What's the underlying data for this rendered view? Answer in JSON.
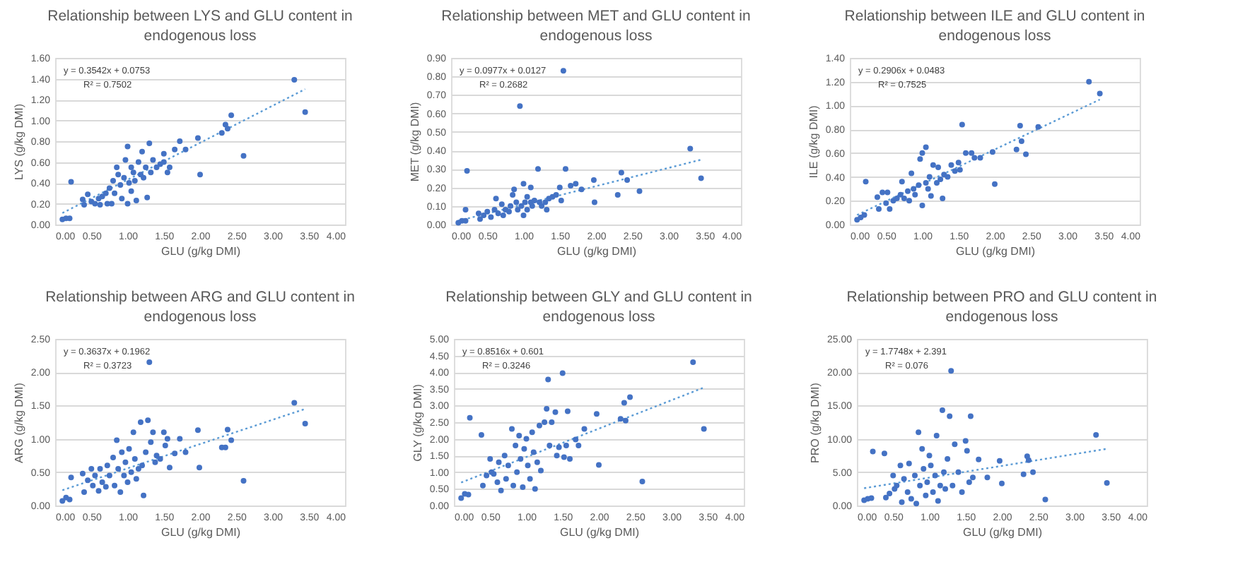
{
  "chart_data": [
    {
      "type": "scatter",
      "title": "Relationship between LYS and GLU content in endogenous loss",
      "xlabel": "GLU (g/kg DMI)",
      "ylabel": "LYS (g/kg DMI)",
      "annotations": [
        "y = 0.3542x + 0.0753",
        "R² = 0.7502"
      ],
      "grid": "y",
      "marker": "circle",
      "xlim": [
        0,
        4
      ],
      "xticks": [
        {
          "value": 0,
          "label": "0.00"
        },
        {
          "value": 0.5,
          "label": "0.50"
        },
        {
          "value": 1,
          "label": "1.00"
        },
        {
          "value": 1.5,
          "label": "1.50"
        },
        {
          "value": 2,
          "label": "2.00"
        },
        {
          "value": 2.5,
          "label": "2.50"
        },
        {
          "value": 3,
          "label": "3.00"
        },
        {
          "value": 3.5,
          "label": "3.50"
        },
        {
          "value": 4,
          "label": "4.00"
        }
      ],
      "ylim": [
        0,
        1.6
      ],
      "yticks": [
        {
          "value": 0,
          "label": "0.00"
        },
        {
          "value": 0.2,
          "label": "0.20"
        },
        {
          "value": 0.4,
          "label": "0.40"
        },
        {
          "value": 0.6,
          "label": "0.60"
        },
        {
          "value": 0.8,
          "label": "0.80"
        },
        {
          "value": 1,
          "label": "1.00"
        },
        {
          "value": 1.2,
          "label": "1.20"
        },
        {
          "value": 1.4,
          "label": "1.40"
        },
        {
          "value": 1.6,
          "label": "1.60"
        }
      ],
      "series": [
        {
          "type": "scatter",
          "color": "#4472c4",
          "x": [
            0.1,
            0.15,
            0.2,
            0.22,
            0.38,
            0.4,
            0.45,
            0.5,
            0.55,
            0.6,
            0.62,
            0.65,
            0.7,
            0.72,
            0.75,
            0.78,
            0.8,
            0.82,
            0.85,
            0.87,
            0.9,
            0.92,
            0.95,
            0.97,
            1.0,
            1.0,
            1.02,
            1.05,
            1.05,
            1.08,
            1.1,
            1.12,
            1.15,
            1.18,
            1.2,
            1.22,
            1.25,
            1.27,
            1.3,
            1.32,
            1.35,
            1.4,
            1.45,
            1.5,
            1.5,
            1.55,
            1.58,
            1.65,
            1.72,
            1.8,
            1.97,
            2.0,
            2.3,
            2.35,
            2.38,
            2.43,
            2.6,
            3.3,
            3.45
          ],
          "values": [
            0.05,
            0.06,
            0.06,
            0.41,
            0.24,
            0.19,
            0.29,
            0.22,
            0.2,
            0.25,
            0.19,
            0.27,
            0.3,
            0.2,
            0.35,
            0.2,
            0.42,
            0.3,
            0.55,
            0.48,
            0.38,
            0.25,
            0.45,
            0.62,
            0.2,
            0.75,
            0.4,
            0.55,
            0.32,
            0.5,
            0.42,
            0.23,
            0.6,
            0.48,
            0.7,
            0.45,
            0.55,
            0.26,
            0.78,
            0.5,
            0.62,
            0.55,
            0.58,
            0.6,
            0.68,
            0.5,
            0.55,
            0.72,
            0.8,
            0.72,
            0.83,
            0.48,
            0.88,
            0.96,
            0.92,
            1.05,
            0.66,
            1.39,
            1.08
          ]
        },
        {
          "type": "line",
          "color": "#5b9bd5",
          "line_style": "dotted",
          "marker": "none",
          "x": [
            0.1,
            3.45
          ],
          "values": [
            0.11,
            1.3
          ]
        }
      ]
    },
    {
      "type": "scatter",
      "title": "Relationship between MET and GLU content in endogenous loss",
      "xlabel": "GLU (g/kg DMI)",
      "ylabel": "MET (g/kg DMI)",
      "annotations": [
        "y = 0.0977x + 0.0127",
        "R² = 0.2682"
      ],
      "grid": "y",
      "marker": "circle",
      "xlim": [
        0,
        4
      ],
      "xticks": [
        {
          "value": 0,
          "label": "0.00"
        },
        {
          "value": 0.5,
          "label": "0.50"
        },
        {
          "value": 1,
          "label": "1.00"
        },
        {
          "value": 1.5,
          "label": "1.50"
        },
        {
          "value": 2,
          "label": "2.00"
        },
        {
          "value": 2.5,
          "label": "2.50"
        },
        {
          "value": 3,
          "label": "3.00"
        },
        {
          "value": 3.5,
          "label": "3.50"
        },
        {
          "value": 4,
          "label": "4.00"
        }
      ],
      "ylim": [
        0,
        0.9
      ],
      "yticks": [
        {
          "value": 0,
          "label": "0.00"
        },
        {
          "value": 0.1,
          "label": "0.10"
        },
        {
          "value": 0.2,
          "label": "0.20"
        },
        {
          "value": 0.3,
          "label": "0.30"
        },
        {
          "value": 0.4,
          "label": "0.40"
        },
        {
          "value": 0.5,
          "label": "0.50"
        },
        {
          "value": 0.6,
          "label": "0.60"
        },
        {
          "value": 0.7,
          "label": "0.70"
        },
        {
          "value": 0.8,
          "label": "0.80"
        },
        {
          "value": 0.9,
          "label": "0.90"
        }
      ],
      "series": [
        {
          "type": "scatter",
          "color": "#4472c4",
          "x": [
            0.1,
            0.15,
            0.2,
            0.2,
            0.22,
            0.38,
            0.4,
            0.45,
            0.5,
            0.55,
            0.6,
            0.62,
            0.65,
            0.7,
            0.72,
            0.75,
            0.8,
            0.82,
            0.85,
            0.87,
            0.9,
            0.92,
            0.95,
            0.97,
            1.0,
            1.0,
            1.02,
            1.05,
            1.05,
            1.1,
            1.1,
            1.12,
            1.15,
            1.2,
            1.22,
            1.25,
            1.3,
            1.32,
            1.35,
            1.4,
            1.45,
            1.5,
            1.52,
            1.55,
            1.58,
            1.65,
            1.72,
            1.8,
            1.97,
            1.98,
            2.3,
            2.35,
            2.43,
            2.6,
            3.3,
            3.45
          ],
          "values": [
            0.01,
            0.02,
            0.02,
            0.08,
            0.29,
            0.06,
            0.03,
            0.05,
            0.07,
            0.04,
            0.08,
            0.14,
            0.06,
            0.11,
            0.05,
            0.08,
            0.07,
            0.1,
            0.16,
            0.19,
            0.12,
            0.08,
            0.64,
            0.1,
            0.22,
            0.05,
            0.12,
            0.15,
            0.08,
            0.2,
            0.12,
            0.1,
            0.13,
            0.3,
            0.12,
            0.1,
            0.12,
            0.08,
            0.14,
            0.15,
            0.16,
            0.2,
            0.13,
            0.83,
            0.3,
            0.21,
            0.22,
            0.19,
            0.24,
            0.12,
            0.16,
            0.28,
            0.24,
            0.18,
            0.41,
            0.25
          ]
        },
        {
          "type": "line",
          "color": "#5b9bd5",
          "line_style": "dotted",
          "marker": "none",
          "x": [
            0.1,
            3.45
          ],
          "values": [
            0.02,
            0.35
          ]
        }
      ]
    },
    {
      "type": "scatter",
      "title": "Relationship between ILE and GLU content in endogenous loss",
      "xlabel": "GLU (g/kg DMI)",
      "ylabel": "ILE (g/kg DMI)",
      "annotations": [
        "y = 0.2906x + 0.0483",
        "R² = 0.7525"
      ],
      "grid": "y",
      "marker": "circle",
      "xlim": [
        0,
        4
      ],
      "xticks": [
        {
          "value": 0,
          "label": "0.00"
        },
        {
          "value": 0.5,
          "label": "0.50"
        },
        {
          "value": 1,
          "label": "1.00"
        },
        {
          "value": 1.5,
          "label": "1.50"
        },
        {
          "value": 2,
          "label": "2.00"
        },
        {
          "value": 2.5,
          "label": "2.50"
        },
        {
          "value": 3,
          "label": "3.00"
        },
        {
          "value": 3.5,
          "label": "3.50"
        },
        {
          "value": 4,
          "label": "4.00"
        }
      ],
      "ylim": [
        0,
        1.4
      ],
      "yticks": [
        {
          "value": 0,
          "label": "0.00"
        },
        {
          "value": 0.2,
          "label": "0.20"
        },
        {
          "value": 0.4,
          "label": "0.40"
        },
        {
          "value": 0.6,
          "label": "0.60"
        },
        {
          "value": 0.8,
          "label": "0.80"
        },
        {
          "value": 1,
          "label": "1.00"
        },
        {
          "value": 1.2,
          "label": "1.20"
        },
        {
          "value": 1.4,
          "label": "1.40"
        }
      ],
      "series": [
        {
          "type": "scatter",
          "color": "#4472c4",
          "x": [
            0.1,
            0.15,
            0.2,
            0.22,
            0.38,
            0.4,
            0.45,
            0.5,
            0.52,
            0.55,
            0.6,
            0.65,
            0.7,
            0.72,
            0.75,
            0.8,
            0.82,
            0.85,
            0.88,
            0.9,
            0.95,
            0.97,
            1.0,
            1.0,
            1.05,
            1.05,
            1.08,
            1.1,
            1.12,
            1.15,
            1.2,
            1.22,
            1.25,
            1.28,
            1.3,
            1.35,
            1.4,
            1.45,
            1.5,
            1.52,
            1.55,
            1.6,
            1.68,
            1.72,
            1.8,
            1.97,
            2.0,
            2.3,
            2.35,
            2.37,
            2.43,
            2.6,
            3.3,
            3.45
          ],
          "values": [
            0.04,
            0.06,
            0.08,
            0.36,
            0.23,
            0.13,
            0.27,
            0.18,
            0.27,
            0.13,
            0.2,
            0.22,
            0.25,
            0.36,
            0.22,
            0.28,
            0.2,
            0.43,
            0.3,
            0.25,
            0.33,
            0.55,
            0.16,
            0.6,
            0.65,
            0.35,
            0.3,
            0.4,
            0.24,
            0.5,
            0.35,
            0.48,
            0.38,
            0.22,
            0.42,
            0.4,
            0.5,
            0.45,
            0.52,
            0.46,
            0.84,
            0.6,
            0.6,
            0.56,
            0.56,
            0.61,
            0.34,
            0.63,
            0.83,
            0.7,
            0.59,
            0.82,
            1.2,
            1.1
          ]
        },
        {
          "type": "line",
          "color": "#5b9bd5",
          "line_style": "dotted",
          "marker": "none",
          "x": [
            0.1,
            3.45
          ],
          "values": [
            0.08,
            1.05
          ]
        }
      ]
    },
    {
      "type": "scatter",
      "title": "Relationship between ARG and GLU content in endogenous loss",
      "xlabel": "GLU (g/kg DMI)",
      "ylabel": "ARG (g/kg DMI)",
      "annotations": [
        "y = 0.3637x + 0.1962",
        "R² = 0.3723"
      ],
      "grid": "y",
      "marker": "circle",
      "xlim": [
        0,
        4
      ],
      "xticks": [
        {
          "value": 0,
          "label": "0.00"
        },
        {
          "value": 0.5,
          "label": "0.50"
        },
        {
          "value": 1,
          "label": "1.00"
        },
        {
          "value": 1.5,
          "label": "1.50"
        },
        {
          "value": 2,
          "label": "2.00"
        },
        {
          "value": 2.5,
          "label": "2.50"
        },
        {
          "value": 3,
          "label": "3.00"
        },
        {
          "value": 3.5,
          "label": "3.50"
        },
        {
          "value": 4,
          "label": "4.00"
        }
      ],
      "ylim": [
        0,
        2.5
      ],
      "yticks": [
        {
          "value": 0,
          "label": "0.00"
        },
        {
          "value": 0.5,
          "label": "0.50"
        },
        {
          "value": 1,
          "label": "1.00"
        },
        {
          "value": 1.5,
          "label": "1.50"
        },
        {
          "value": 2,
          "label": "2.00"
        },
        {
          "value": 2.5,
          "label": "2.50"
        }
      ],
      "series": [
        {
          "type": "scatter",
          "color": "#4472c4",
          "x": [
            0.1,
            0.15,
            0.2,
            0.22,
            0.38,
            0.4,
            0.45,
            0.5,
            0.52,
            0.55,
            0.6,
            0.62,
            0.65,
            0.7,
            0.72,
            0.75,
            0.8,
            0.82,
            0.85,
            0.87,
            0.9,
            0.92,
            0.95,
            0.97,
            1.0,
            1.02,
            1.05,
            1.08,
            1.1,
            1.12,
            1.15,
            1.18,
            1.2,
            1.22,
            1.25,
            1.28,
            1.3,
            1.32,
            1.35,
            1.38,
            1.4,
            1.45,
            1.5,
            1.52,
            1.55,
            1.58,
            1.65,
            1.72,
            1.8,
            1.97,
            1.99,
            2.3,
            2.35,
            2.38,
            2.43,
            2.6,
            3.3,
            3.45
          ],
          "values": [
            0.07,
            0.12,
            0.09,
            0.42,
            0.48,
            0.2,
            0.38,
            0.55,
            0.3,
            0.45,
            0.22,
            0.55,
            0.35,
            0.28,
            0.6,
            0.45,
            0.72,
            0.3,
            0.98,
            0.55,
            0.2,
            0.8,
            0.45,
            0.65,
            0.35,
            0.85,
            0.5,
            1.1,
            0.7,
            0.4,
            0.55,
            1.25,
            0.6,
            0.15,
            0.8,
            1.28,
            2.15,
            0.95,
            1.1,
            0.65,
            0.75,
            0.7,
            1.1,
            0.9,
            1.0,
            0.57,
            0.78,
            1.0,
            0.8,
            1.13,
            0.57,
            0.87,
            0.87,
            1.14,
            0.98,
            0.37,
            1.54,
            1.23
          ]
        },
        {
          "type": "line",
          "color": "#5b9bd5",
          "line_style": "dotted",
          "marker": "none",
          "x": [
            0.1,
            3.45
          ],
          "values": [
            0.23,
            1.45
          ]
        }
      ]
    },
    {
      "type": "scatter",
      "title": "Relationship between GLY and GLU content in endogenous loss",
      "xlabel": "GLU (g/kg DMI)",
      "ylabel": "GLY (g/kg DMI)",
      "annotations": [
        "y = 0.8516x + 0.601",
        "R² = 0.3246"
      ],
      "grid": "y",
      "marker": "circle",
      "xlim": [
        0,
        4
      ],
      "xticks": [
        {
          "value": 0,
          "label": "0.00"
        },
        {
          "value": 0.5,
          "label": "0.50"
        },
        {
          "value": 1,
          "label": "1.00"
        },
        {
          "value": 1.5,
          "label": "1.50"
        },
        {
          "value": 2,
          "label": "2.00"
        },
        {
          "value": 2.5,
          "label": "2.50"
        },
        {
          "value": 3,
          "label": "3.00"
        },
        {
          "value": 3.5,
          "label": "3.50"
        },
        {
          "value": 4,
          "label": "4.00"
        }
      ],
      "ylim": [
        0,
        5
      ],
      "yticks": [
        {
          "value": 0,
          "label": "0.00"
        },
        {
          "value": 0.5,
          "label": "0.50"
        },
        {
          "value": 1,
          "label": "1.00"
        },
        {
          "value": 1.5,
          "label": "1.50"
        },
        {
          "value": 2,
          "label": "2.00"
        },
        {
          "value": 2.5,
          "label": "2.50"
        },
        {
          "value": 3,
          "label": "3.00"
        },
        {
          "value": 3.5,
          "label": "3.50"
        },
        {
          "value": 4,
          "label": "4.00"
        },
        {
          "value": 4.5,
          "label": "4.50"
        },
        {
          "value": 5,
          "label": "5.00"
        }
      ],
      "series": [
        {
          "type": "scatter",
          "color": "#4472c4",
          "x": [
            0.1,
            0.15,
            0.2,
            0.22,
            0.38,
            0.4,
            0.45,
            0.5,
            0.52,
            0.55,
            0.6,
            0.62,
            0.65,
            0.7,
            0.72,
            0.75,
            0.8,
            0.82,
            0.85,
            0.87,
            0.9,
            0.92,
            0.95,
            0.97,
            1.0,
            1.02,
            1.05,
            1.08,
            1.1,
            1.12,
            1.15,
            1.18,
            1.2,
            1.25,
            1.28,
            1.3,
            1.32,
            1.35,
            1.4,
            1.42,
            1.45,
            1.5,
            1.52,
            1.55,
            1.57,
            1.6,
            1.68,
            1.72,
            1.8,
            1.97,
            2.0,
            2.3,
            2.35,
            2.37,
            2.43,
            2.6,
            3.3,
            3.45
          ],
          "values": [
            0.22,
            0.35,
            0.33,
            2.63,
            2.12,
            0.6,
            0.9,
            1.4,
            1.0,
            0.95,
            0.7,
            1.3,
            0.45,
            1.5,
            0.8,
            1.2,
            2.3,
            0.6,
            1.8,
            1.0,
            2.1,
            1.4,
            0.55,
            1.7,
            2.0,
            1.2,
            0.8,
            2.2,
            1.6,
            0.5,
            1.3,
            2.4,
            1.05,
            2.5,
            2.9,
            3.78,
            1.8,
            2.5,
            2.8,
            1.5,
            1.75,
            3.97,
            1.45,
            1.8,
            2.83,
            1.4,
            1.98,
            1.8,
            2.3,
            2.75,
            1.22,
            2.6,
            3.08,
            2.55,
            3.25,
            0.72,
            4.3,
            2.3
          ]
        },
        {
          "type": "line",
          "color": "#5b9bd5",
          "line_style": "dotted",
          "marker": "none",
          "x": [
            0.1,
            3.45
          ],
          "values": [
            0.69,
            3.54
          ]
        }
      ]
    },
    {
      "type": "scatter",
      "title": "Relationship between PRO and GLU content in endogenous loss",
      "xlabel": "GLU (g/kg DMI)",
      "ylabel": "PRO (g/kg DMI)",
      "annotations": [
        "y = 1.7748x + 2.391",
        "R² = 0.076"
      ],
      "grid": "y",
      "marker": "circle",
      "xlim": [
        0,
        4
      ],
      "xticks": [
        {
          "value": 0,
          "label": "0.00"
        },
        {
          "value": 0.5,
          "label": "0.50"
        },
        {
          "value": 1,
          "label": "1.00"
        },
        {
          "value": 1.5,
          "label": "1.50"
        },
        {
          "value": 2,
          "label": "2.00"
        },
        {
          "value": 2.5,
          "label": "2.50"
        },
        {
          "value": 3,
          "label": "3.00"
        },
        {
          "value": 3.5,
          "label": "3.50"
        },
        {
          "value": 4,
          "label": "4.00"
        }
      ],
      "ylim": [
        0,
        25
      ],
      "yticks": [
        {
          "value": 0,
          "label": "0.00"
        },
        {
          "value": 5,
          "label": "5.00"
        },
        {
          "value": 10,
          "label": "10.00"
        },
        {
          "value": 15,
          "label": "15.00"
        },
        {
          "value": 20,
          "label": "20.00"
        },
        {
          "value": 25,
          "label": "25.00"
        }
      ],
      "series": [
        {
          "type": "scatter",
          "color": "#4472c4",
          "x": [
            0.1,
            0.15,
            0.2,
            0.22,
            0.38,
            0.4,
            0.45,
            0.5,
            0.52,
            0.55,
            0.6,
            0.62,
            0.65,
            0.7,
            0.72,
            0.75,
            0.8,
            0.82,
            0.85,
            0.87,
            0.9,
            0.92,
            0.95,
            0.97,
            1.0,
            1.02,
            1.05,
            1.08,
            1.1,
            1.12,
            1.15,
            1.18,
            1.2,
            1.22,
            1.25,
            1.28,
            1.3,
            1.32,
            1.35,
            1.4,
            1.45,
            1.5,
            1.52,
            1.55,
            1.57,
            1.6,
            1.68,
            1.8,
            1.97,
            2.0,
            2.3,
            2.35,
            2.37,
            2.43,
            2.6,
            3.3,
            3.45
          ],
          "values": [
            0.8,
            1.0,
            1.1,
            8.1,
            7.8,
            1.2,
            1.8,
            4.5,
            2.5,
            3.0,
            6.0,
            0.5,
            4.0,
            2.0,
            6.3,
            1.0,
            4.5,
            0.3,
            11.0,
            3.0,
            8.5,
            5.5,
            1.5,
            3.5,
            7.5,
            6.0,
            2.0,
            4.5,
            10.5,
            0.7,
            3.0,
            14.3,
            5.0,
            2.5,
            7.0,
            13.4,
            20.2,
            3.0,
            9.2,
            5.0,
            2.0,
            9.7,
            8.2,
            3.5,
            13.4,
            4.2,
            6.9,
            4.2,
            6.7,
            3.3,
            4.7,
            7.4,
            6.8,
            5.0,
            0.9,
            10.6,
            3.4
          ]
        },
        {
          "type": "line",
          "color": "#5b9bd5",
          "line_style": "dotted",
          "marker": "none",
          "x": [
            0.1,
            3.45
          ],
          "values": [
            2.6,
            8.5
          ]
        }
      ]
    }
  ]
}
